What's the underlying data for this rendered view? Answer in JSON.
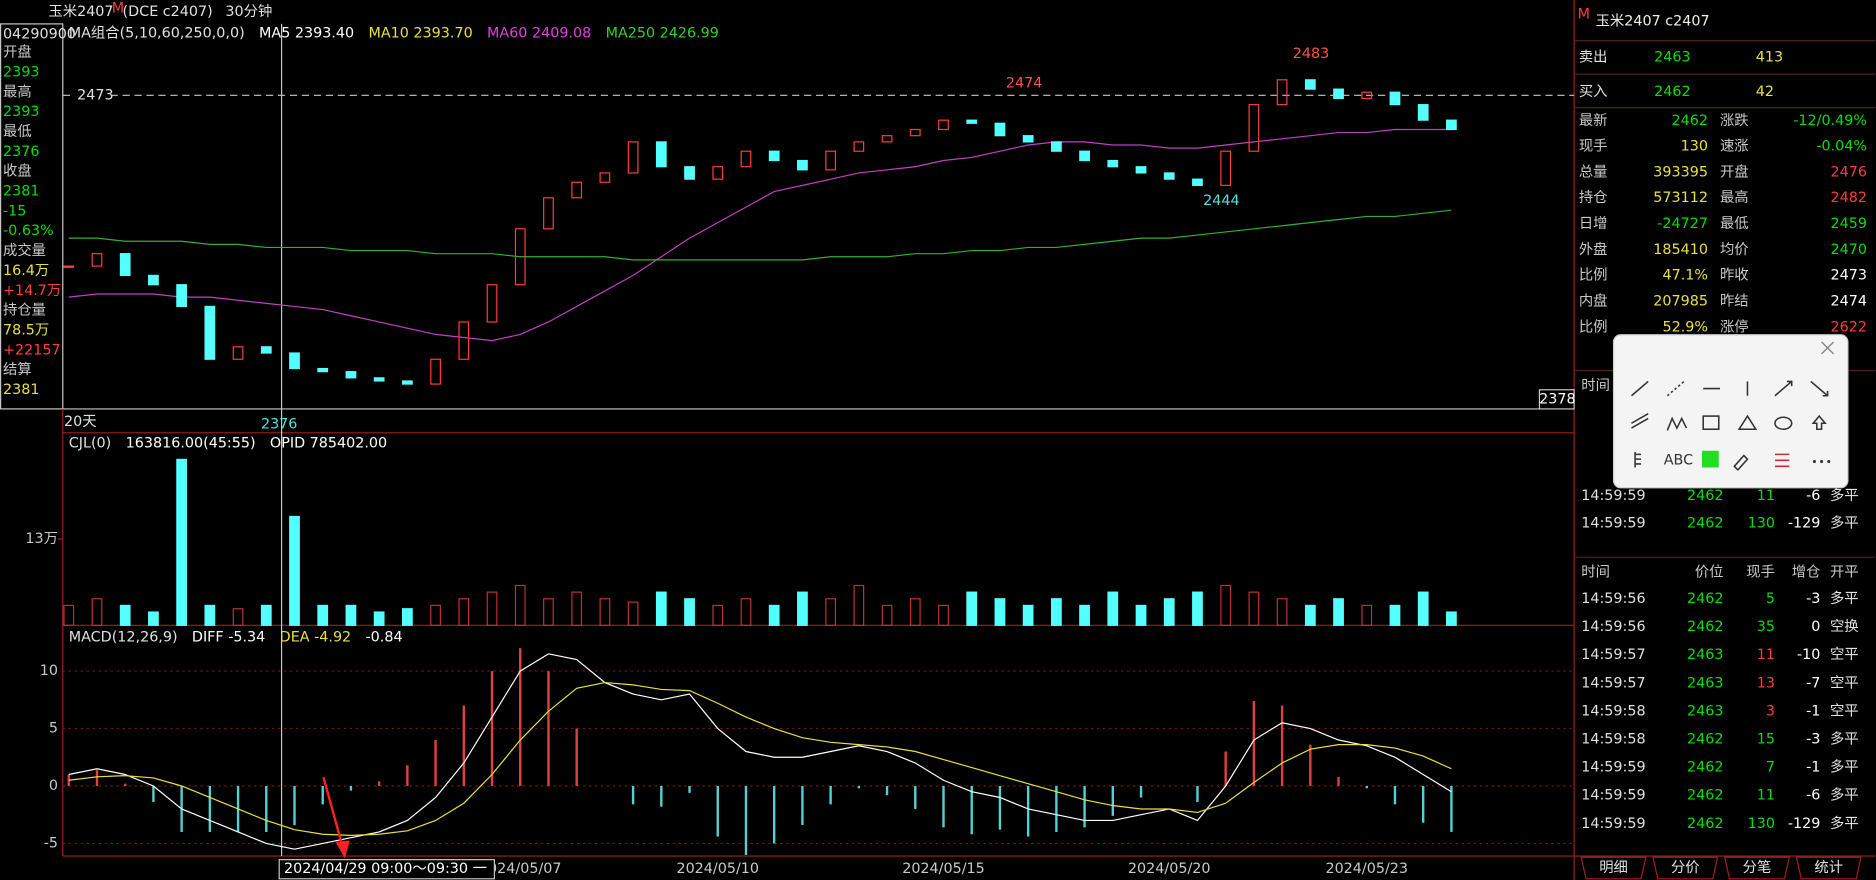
{
  "header": {
    "symbol": "玉米2407",
    "flag": "M",
    "code": "(DCE  c2407)",
    "period": "30分钟"
  },
  "left_info": {
    "date": "04290900",
    "items": [
      {
        "text": "开盘",
        "color": "#c8c8c8"
      },
      {
        "text": "2393",
        "color": "#00e000"
      },
      {
        "text": "最高",
        "color": "#c8c8c8"
      },
      {
        "text": "2393",
        "color": "#00e000"
      },
      {
        "text": "最低",
        "color": "#c8c8c8"
      },
      {
        "text": "2376",
        "color": "#00e000"
      },
      {
        "text": "收盘",
        "color": "#c8c8c8"
      },
      {
        "text": "2381",
        "color": "#00e000"
      },
      {
        "text": "-15",
        "color": "#00e000"
      },
      {
        "text": "-0.63%",
        "color": "#00e000"
      },
      {
        "text": "成交量",
        "color": "#c8c8c8"
      },
      {
        "text": "16.4万",
        "color": "#e8e040"
      },
      {
        "text": "+14.7万",
        "color": "#ff4040"
      },
      {
        "text": "持仓量",
        "color": "#c8c8c8"
      },
      {
        "text": "78.5万",
        "color": "#e8e040"
      },
      {
        "text": "+22157",
        "color": "#ff4040"
      },
      {
        "text": "结算",
        "color": "#c8c8c8"
      },
      {
        "text": "2381",
        "color": "#e8e040"
      }
    ]
  },
  "chart_data": [
    {
      "type": "candlestick",
      "legend": [
        {
          "text": "MA组合(5,10,60,250,0,0)",
          "color": "#e0e0e0"
        },
        {
          "text": "MA5 2393.40",
          "color": "#ffffff"
        },
        {
          "text": "MA10 2393.70",
          "color": "#e8e040"
        },
        {
          "text": "MA60 2409.08",
          "color": "#e040e0"
        },
        {
          "text": "MA250 2426.99",
          "color": "#30d030"
        }
      ],
      "closes": [
        2418,
        2422,
        2415,
        2412,
        2405,
        2388,
        2392,
        2390,
        2385,
        2384,
        2382,
        2381,
        2380,
        2388,
        2400,
        2412,
        2430,
        2440,
        2445,
        2448,
        2458,
        2450,
        2446,
        2450,
        2455,
        2452,
        2449,
        2455,
        2458,
        2460,
        2462,
        2465,
        2464,
        2460,
        2458,
        2455,
        2452,
        2450,
        2448,
        2446,
        2444,
        2455,
        2470,
        2478,
        2475,
        2472,
        2474,
        2470,
        2465,
        2462
      ],
      "series": [
        {
          "color": "#c040c0",
          "values": [
            2408,
            2409,
            2409,
            2409,
            2408,
            2408,
            2407,
            2406,
            2405,
            2404,
            2402,
            2400,
            2398,
            2396,
            2395,
            2394,
            2396,
            2400,
            2405,
            2410,
            2415,
            2421,
            2427,
            2432,
            2437,
            2442,
            2444,
            2446,
            2448,
            2449,
            2450,
            2452,
            2453,
            2455,
            2457,
            2458,
            2458,
            2457,
            2457,
            2456,
            2456,
            2457,
            2458,
            2459,
            2460,
            2461,
            2461,
            2462,
            2462,
            2462
          ]
        },
        {
          "color": "#30b030",
          "values": [
            2427,
            2427,
            2426,
            2426,
            2426,
            2425,
            2425,
            2424,
            2424,
            2424,
            2423,
            2423,
            2423,
            2422,
            2422,
            2422,
            2421,
            2421,
            2421,
            2421,
            2420,
            2420,
            2420,
            2420,
            2420,
            2420,
            2420,
            2421,
            2421,
            2421,
            2422,
            2422,
            2423,
            2423,
            2424,
            2424,
            2425,
            2426,
            2427,
            2427,
            2428,
            2429,
            2430,
            2431,
            2432,
            2433,
            2434,
            2434,
            2435,
            2436
          ]
        }
      ],
      "up_color": "#ff3c3c",
      "down_color": "#54ffff",
      "ylim": [
        2372,
        2496
      ],
      "yticks": [
        2473
      ],
      "annotations": [
        {
          "text": "2483",
          "color": "#ff5050"
        },
        {
          "text": "2474",
          "color": "#ff5050"
        },
        {
          "text": "2444",
          "color": "#54e0e0"
        },
        {
          "text": "2376",
          "color": "#54e0e0"
        },
        {
          "text": "2378",
          "color": "#ffffff"
        }
      ],
      "period_label": "20天",
      "categories": [
        null,
        null,
        null,
        null,
        null,
        null,
        null,
        null,
        null,
        null,
        null,
        null,
        null,
        null,
        null,
        null,
        "2024/05/07",
        null,
        null,
        null,
        null,
        null,
        null,
        "2024/05/10",
        null,
        null,
        null,
        null,
        null,
        null,
        null,
        "2024/05/15",
        null,
        null,
        null,
        null,
        null,
        null,
        null,
        "2024/05/20",
        null,
        null,
        null,
        null,
        null,
        null,
        "2024/05/23",
        null,
        null,
        null
      ],
      "cursor_label": "2024/04/29 09:00～09:30 一"
    },
    {
      "type": "bar",
      "legend": [
        {
          "text": "CJL(0)",
          "color": "#e0e0e0"
        },
        {
          "text": "163816.00(45:55)",
          "color": "#ffffff"
        },
        {
          "text": "OPID 785402.00",
          "color": "#ffffff"
        }
      ],
      "values": [
        3,
        4,
        3,
        2,
        25,
        3,
        2.5,
        3,
        16.4,
        3,
        3,
        2,
        2.5,
        3,
        4,
        5,
        6,
        4,
        5,
        4,
        3.5,
        5,
        4,
        3,
        4,
        3,
        5,
        4,
        6,
        3,
        4,
        3,
        5,
        4,
        3,
        4,
        3,
        5,
        3,
        4,
        5,
        6,
        5,
        4,
        3,
        4,
        3,
        3,
        5,
        2
      ],
      "ylim": [
        0,
        29
      ],
      "yticks": [
        {
          "value": 13,
          "label": "13万"
        }
      ]
    },
    {
      "type": "macd",
      "legend": [
        {
          "text": "MACD(12,26,9)",
          "color": "#e0e0e0"
        },
        {
          "text": "DIFF -5.34",
          "color": "#ffffff"
        },
        {
          "text": "DEA -4.92",
          "color": "#e8e040"
        },
        {
          "text": "-0.84",
          "color": "#ffffff"
        }
      ],
      "series": [
        {
          "color": "#ffffff",
          "values": [
            1,
            1.5,
            1,
            0,
            -2,
            -3,
            -4,
            -5,
            -5.5,
            -5,
            -4.5,
            -4,
            -3,
            -1,
            2,
            6,
            10,
            11.5,
            11,
            9,
            8,
            7.5,
            8,
            5,
            3,
            2.5,
            2.5,
            3,
            3.5,
            3,
            2,
            0.5,
            -0.5,
            -1,
            -2,
            -2.5,
            -3,
            -3,
            -2.5,
            -2,
            -3,
            0,
            4,
            5.5,
            5,
            4,
            3.5,
            2.5,
            1,
            -0.5
          ]
        },
        {
          "color": "#e8e040",
          "values": [
            0.5,
            0.8,
            0.9,
            0.7,
            0,
            -1,
            -2,
            -3,
            -3.8,
            -4.2,
            -4.3,
            -4.2,
            -3.9,
            -3,
            -1.5,
            1,
            4,
            6.5,
            8.5,
            9,
            8.8,
            8.4,
            8.3,
            7.2,
            6,
            5,
            4.2,
            3.8,
            3.6,
            3.4,
            3,
            2.3,
            1.6,
            0.9,
            0.2,
            -0.5,
            -1.2,
            -1.7,
            -2,
            -2,
            -2.3,
            -1.5,
            0.3,
            2,
            3.2,
            3.6,
            3.6,
            3.3,
            2.6,
            1.5
          ]
        }
      ],
      "values": [
        1,
        1.4,
        0.2,
        -1.4,
        -4,
        -4,
        -4,
        -4,
        -3.4,
        -1.6,
        -0.4,
        0.4,
        1.8,
        4,
        7,
        10,
        12,
        10,
        5,
        0,
        -1.6,
        -1.8,
        -0.6,
        -4.4,
        -6,
        -5,
        -3.4,
        -1.6,
        -0.2,
        -0.8,
        -2,
        -3.6,
        -4.2,
        -3.8,
        -4.4,
        -4,
        -3.6,
        -2.6,
        -1,
        0,
        -1.4,
        3,
        7.4,
        7,
        3.6,
        0.8,
        -0.2,
        -1.6,
        -3.2,
        -4
      ],
      "ylim": [
        -6.1,
        11.9
      ],
      "yticks": [
        10,
        5,
        0,
        -5
      ]
    }
  ],
  "quote": {
    "flag": "M",
    "title": "玉米2407  c2407",
    "sell": [
      "卖出",
      "2463",
      "413"
    ],
    "buy": [
      "买入",
      "2462",
      "42"
    ],
    "rows": [
      [
        "最新",
        "2462",
        "涨跌",
        "-12/0.49%"
      ],
      [
        "现手",
        "130",
        "速涨",
        "-0.04%"
      ],
      [
        "总量",
        "393395",
        "开盘",
        "2476"
      ],
      [
        "持仓",
        "573112",
        "最高",
        "2482"
      ],
      [
        "日增",
        "-24727",
        "最低",
        "2459"
      ],
      [
        "外盘",
        "185410",
        "均价",
        "2470"
      ],
      [
        "比例",
        "47.1%",
        "昨收",
        "2473"
      ],
      [
        "内盘",
        "207985",
        "昨结",
        "2474"
      ],
      [
        "比例",
        "52.9%",
        "涨停",
        "2622"
      ]
    ],
    "row_colors": [
      [
        "#c8c8c8",
        "#00e000",
        "#c8c8c8",
        "#00e000"
      ],
      [
        "#c8c8c8",
        "#e8e040",
        "#c8c8c8",
        "#00e000"
      ],
      [
        "#c8c8c8",
        "#e8e040",
        "#c8c8c8",
        "#ff3c3c"
      ],
      [
        "#c8c8c8",
        "#e8e040",
        "#c8c8c8",
        "#ff3c3c"
      ],
      [
        "#c8c8c8",
        "#00e000",
        "#c8c8c8",
        "#00e000"
      ],
      [
        "#c8c8c8",
        "#e8e040",
        "#c8c8c8",
        "#00e000"
      ],
      [
        "#c8c8c8",
        "#e8e040",
        "#c8c8c8",
        "#ffffff"
      ],
      [
        "#c8c8c8",
        "#e8e040",
        "#c8c8c8",
        "#ffffff"
      ],
      [
        "#c8c8c8",
        "#e8e040",
        "#c8c8c8",
        "#ff3c3c"
      ]
    ]
  },
  "trades_top": {
    "header": "时间",
    "rows": [
      [
        "14:59:59",
        "2462",
        "11",
        "-6",
        "多平"
      ],
      [
        "14:59:59",
        "2462",
        "130",
        "-129",
        "多平"
      ]
    ],
    "vol_colors": [
      "#00e000",
      "#00e000"
    ]
  },
  "trades": {
    "header": [
      "时间",
      "价位",
      "现手",
      "增仓",
      "开平"
    ],
    "rows": [
      [
        "14:59:56",
        "2462",
        "5",
        "-3",
        "多平"
      ],
      [
        "14:59:56",
        "2462",
        "35",
        "0",
        "空换"
      ],
      [
        "14:59:57",
        "2463",
        "11",
        "-10",
        "空平"
      ],
      [
        "14:59:57",
        "2463",
        "13",
        "-7",
        "空平"
      ],
      [
        "14:59:58",
        "2463",
        "3",
        "-1",
        "空平"
      ],
      [
        "14:59:58",
        "2462",
        "15",
        "-3",
        "多平"
      ],
      [
        "14:59:59",
        "2462",
        "7",
        "-1",
        "多平"
      ],
      [
        "14:59:59",
        "2462",
        "11",
        "-6",
        "多平"
      ],
      [
        "14:59:59",
        "2462",
        "130",
        "-129",
        "多平"
      ]
    ],
    "vol_colors": [
      "#00e000",
      "#00e000",
      "#ff3c3c",
      "#ff3c3c",
      "#ff3c3c",
      "#00e000",
      "#00e000",
      "#00e000",
      "#00e000"
    ]
  },
  "tabs": [
    "明细",
    "分价",
    "分笔",
    "统计"
  ],
  "toolbar": {
    "text_tool": "ABC"
  }
}
